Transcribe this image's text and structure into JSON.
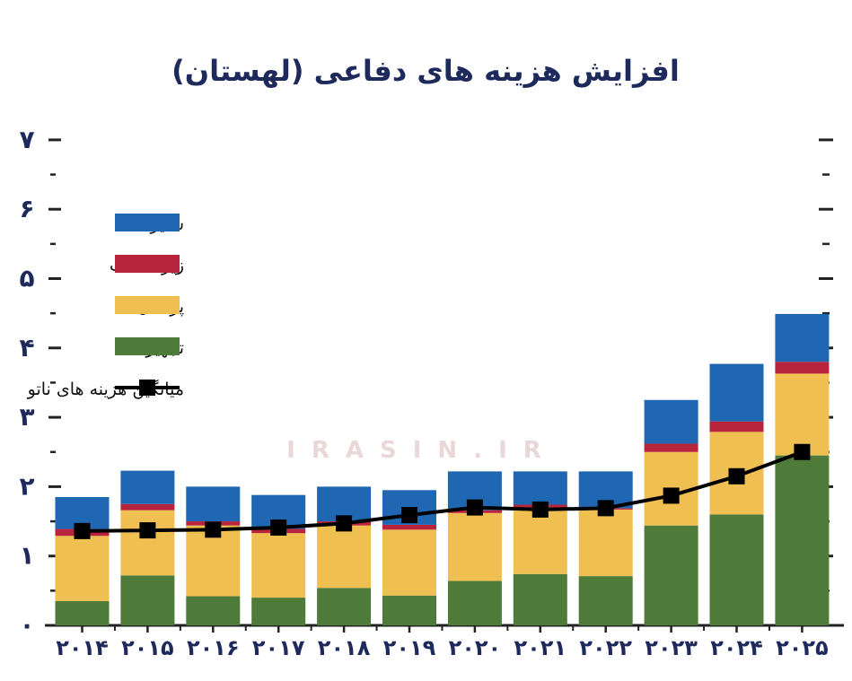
{
  "chart_data": {
    "type": "bar",
    "title": "افزایش هزینه های دفاعی (لهستان)",
    "categories": [
      "۲۰۱۴",
      "۲۰۱۵",
      "۲۰۱۶",
      "۲۰۱۷",
      "۲۰۱۸",
      "۲۰۱۹",
      "۲۰۲۰",
      "۲۰۲۱",
      "۲۰۲۲",
      "۲۰۲۳",
      "۲۰۲۴",
      "۲۰۲۵"
    ],
    "y_ticks": [
      "۰",
      "۱",
      "۲",
      "۳",
      "۴",
      "۵",
      "۶",
      "۷"
    ],
    "ylim": [
      0,
      7
    ],
    "stacked": true,
    "grid": false,
    "legend_position": "top-left",
    "series": [
      {
        "name": "تجهیزات",
        "color": "#4e7a3a",
        "values": [
          0.35,
          0.72,
          0.42,
          0.4,
          0.54,
          0.43,
          0.64,
          0.74,
          0.71,
          1.44,
          1.6,
          2.45
        ]
      },
      {
        "name": "پرسنل",
        "color": "#f0bf52",
        "values": [
          0.94,
          0.94,
          1.02,
          0.93,
          0.9,
          0.95,
          0.98,
          0.96,
          0.96,
          1.06,
          1.19,
          1.18
        ]
      },
      {
        "name": "زیر ساخت",
        "color": "#b8243c",
        "values": [
          0.1,
          0.09,
          0.06,
          0.06,
          0.06,
          0.07,
          0.04,
          0.04,
          0.02,
          0.12,
          0.15,
          0.17
        ]
      },
      {
        "name": "سایر",
        "color": "#1f66b3",
        "values": [
          0.46,
          0.48,
          0.5,
          0.49,
          0.5,
          0.5,
          0.56,
          0.48,
          0.53,
          0.63,
          0.83,
          0.69
        ]
      }
    ],
    "line": {
      "name": "میانگین هزینه های ناتو",
      "color": "#000000",
      "values": [
        1.36,
        1.37,
        1.38,
        1.41,
        1.47,
        1.59,
        1.7,
        1.67,
        1.69,
        1.87,
        2.15,
        2.5
      ]
    },
    "legend_order": [
      "سایر",
      "زیر ساخت",
      "پرسنل",
      "تجهیزات",
      "میانگین هزینه های ناتو"
    ],
    "watermark": "IRASIN.IR"
  }
}
